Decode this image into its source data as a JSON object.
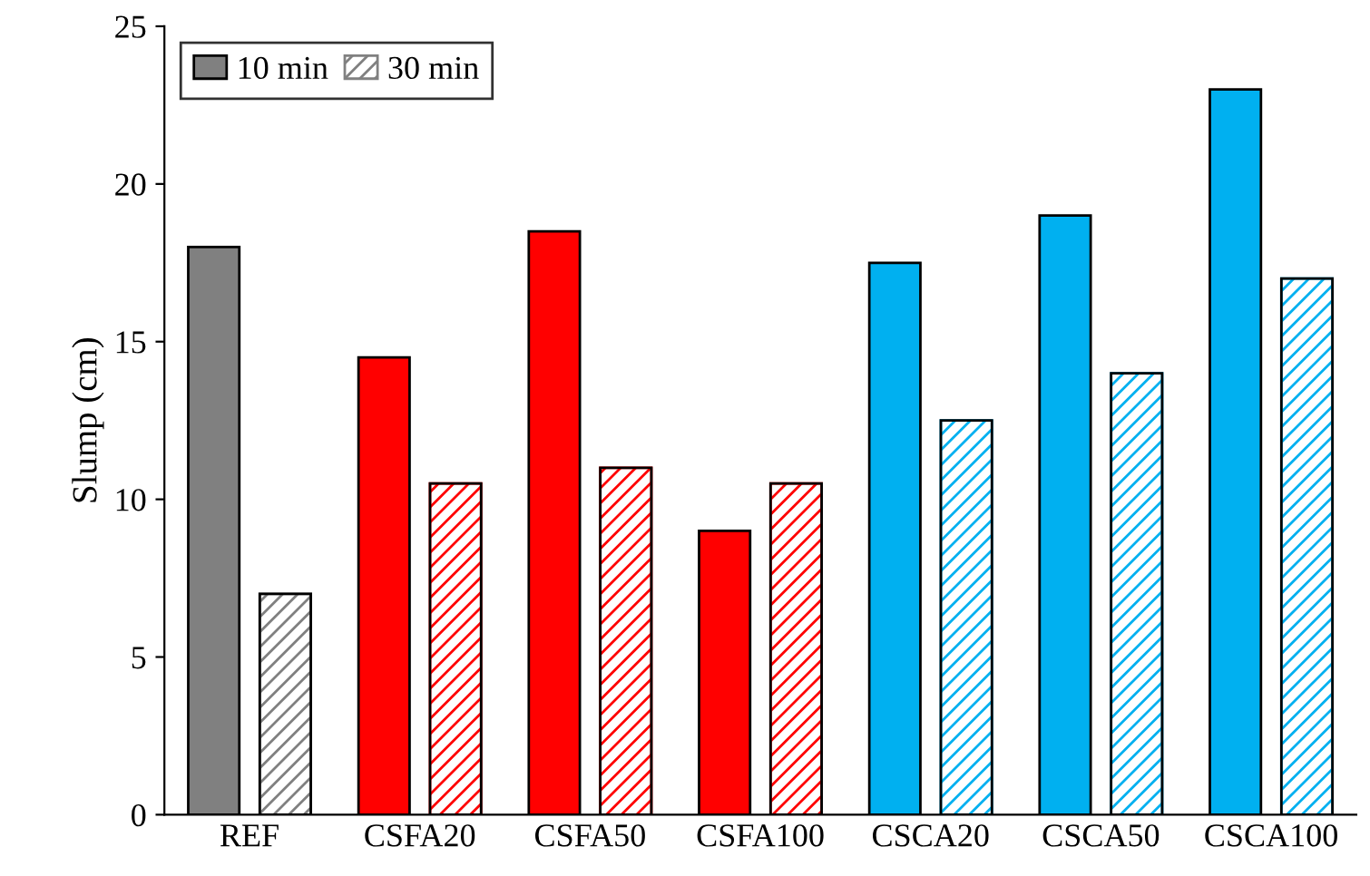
{
  "chart_data": {
    "type": "bar",
    "ylabel": "Slump (cm)",
    "categories": [
      "REF",
      "CSFA20",
      "CSFA50",
      "CSFA100",
      "CSCA20",
      "CSCA50",
      "CSCA100"
    ],
    "series": [
      {
        "name": "10 min",
        "color": "#808080",
        "colors": [
          "#808080",
          "#ff0000",
          "#ff0000",
          "#ff0000",
          "#00b0f0",
          "#00b0f0",
          "#00b0f0"
        ],
        "values": [
          18,
          14.5,
          18.5,
          9,
          17.5,
          19,
          23
        ]
      },
      {
        "name": "30 min",
        "color": "#808080",
        "colors": [
          "#808080",
          "#ff0000",
          "#ff0000",
          "#ff0000",
          "#00b0f0",
          "#00b0f0",
          "#00b0f0"
        ],
        "values": [
          7,
          10.5,
          11,
          10.5,
          12.5,
          14,
          17
        ]
      }
    ],
    "ylim": [
      0,
      25
    ],
    "yticks": [
      0,
      5,
      10,
      15,
      20,
      25
    ],
    "grid": false,
    "legend": "top left"
  }
}
